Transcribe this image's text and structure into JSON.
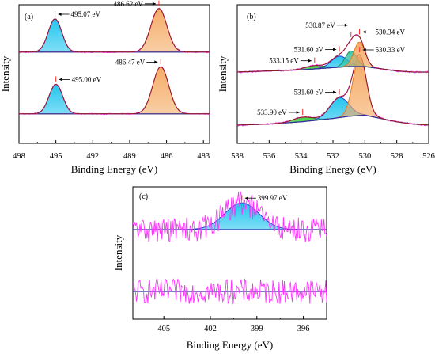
{
  "figure": {
    "caption": "",
    "panels_count": 3
  },
  "colors": {
    "axis": "#000000",
    "fit_envelope": "#8b1a1a",
    "raw_data": "#ff33ff",
    "background_line": "#2f2fa0",
    "peak_blue_fill": "#19c3ee",
    "peak_blue_edge": "#2b3cc9",
    "peak_orange_fill": "#f4a75e",
    "peak_orange_edge": "#e87d1d",
    "peak_teal_fill": "#37c6a8",
    "baseline_green": "#22cc22",
    "marker_red": "#ff2a2a"
  },
  "chart_data": [
    {
      "id": "a",
      "panel_label": "(a)",
      "type": "line",
      "xlabel": "Binding Energy (eV)",
      "ylabel": "Intensity",
      "x_reversed": true,
      "xlim": [
        498,
        482.5
      ],
      "xticks": [
        498,
        495,
        492,
        489,
        486,
        483
      ],
      "y_ticks_shown": false,
      "traces": [
        {
          "offset": 1,
          "background": [
            [
              498,
              0.02
            ],
            [
              482.5,
              0.02
            ]
          ],
          "peaks": [
            {
              "center": 495.0,
              "height": 0.34,
              "width": 0.55,
              "color": "blue"
            },
            {
              "center": 486.47,
              "height": 0.54,
              "width": 0.65,
              "color": "orange"
            }
          ],
          "annotations": [
            {
              "text": "495.00 eV",
              "x": 495.0,
              "side": "right"
            },
            {
              "text": "486.47 eV",
              "x": 486.47,
              "side": "left"
            }
          ]
        },
        {
          "offset": 0,
          "background": [
            [
              498,
              0.02
            ],
            [
              482.5,
              0.02
            ]
          ],
          "peaks": [
            {
              "center": 495.07,
              "height": 0.38,
              "width": 0.55,
              "color": "blue"
            },
            {
              "center": 486.62,
              "height": 0.5,
              "width": 0.65,
              "color": "orange"
            }
          ],
          "annotations": [
            {
              "text": "495.07 eV",
              "x": 495.07,
              "side": "right"
            },
            {
              "text": "486.62 eV",
              "x": 486.62,
              "side": "left"
            }
          ]
        }
      ]
    },
    {
      "id": "b",
      "panel_label": "(b)",
      "type": "line",
      "xlabel": "Binding Energy (eV)",
      "ylabel": "Intensity",
      "x_reversed": true,
      "xlim": [
        538,
        526
      ],
      "xticks": [
        538,
        536,
        534,
        532,
        530,
        528,
        526
      ],
      "y_ticks_shown": false,
      "traces": [
        {
          "offset": 1,
          "background": [
            [
              538,
              0.0
            ],
            [
              536,
              0.01
            ],
            [
              534,
              0.03
            ],
            [
              532,
              0.06
            ],
            [
              531,
              0.08
            ],
            [
              530,
              0.09
            ],
            [
              529,
              0.06
            ],
            [
              528,
              0.03
            ],
            [
              527,
              0.01
            ],
            [
              526,
              0.0
            ]
          ],
          "peaks": [
            {
              "center": 533.9,
              "height": 0.04,
              "width": 0.6,
              "color": "green"
            },
            {
              "center": 531.6,
              "height": 0.18,
              "width": 0.6,
              "color": "blue"
            },
            {
              "center": 530.33,
              "height": 0.53,
              "width": 0.42,
              "color": "orange"
            }
          ],
          "annotations": [
            {
              "text": "533.90 eV",
              "x": 533.9,
              "side": "left"
            },
            {
              "text": "531.60 eV",
              "x": 531.6,
              "side": "left"
            },
            {
              "text": "530.33 eV",
              "x": 530.33,
              "side": "right"
            }
          ]
        },
        {
          "offset": 0,
          "background": [
            [
              538,
              0.0
            ],
            [
              536,
              0.01
            ],
            [
              534,
              0.02
            ],
            [
              532,
              0.04
            ],
            [
              531,
              0.05
            ],
            [
              530,
              0.05
            ],
            [
              529,
              0.03
            ],
            [
              528,
              0.01
            ],
            [
              527,
              0.0
            ],
            [
              526,
              0.0
            ]
          ],
          "peaks": [
            {
              "center": 533.15,
              "height": 0.03,
              "width": 0.6,
              "color": "green"
            },
            {
              "center": 531.6,
              "height": 0.1,
              "width": 0.5,
              "color": "blue"
            },
            {
              "center": 530.87,
              "height": 0.14,
              "width": 0.35,
              "color": "teal"
            },
            {
              "center": 530.34,
              "height": 0.22,
              "width": 0.35,
              "color": "orange"
            }
          ],
          "annotations": [
            {
              "text": "533.15 eV",
              "x": 533.15,
              "side": "left"
            },
            {
              "text": "531.60 eV",
              "x": 531.6,
              "side": "left"
            },
            {
              "text": "530.87 eV",
              "x": 530.87,
              "side": "left"
            },
            {
              "text": "530.34 eV",
              "x": 530.34,
              "side": "right"
            }
          ]
        }
      ]
    },
    {
      "id": "c",
      "panel_label": "(c)",
      "type": "line",
      "xlabel": "Binding Energy (eV)",
      "ylabel": "Intensity",
      "x_reversed": true,
      "xlim": [
        407,
        394.5
      ],
      "xticks": [
        405,
        402,
        399,
        396
      ],
      "y_ticks_shown": false,
      "traces": [
        {
          "offset": 1,
          "background": [
            [
              407,
              0.0
            ],
            [
              394.5,
              0.0
            ]
          ],
          "noise_only": true,
          "peaks": [],
          "annotations": []
        },
        {
          "offset": 0,
          "background": [
            [
              407,
              0.0
            ],
            [
              394.5,
              0.0
            ]
          ],
          "peaks": [
            {
              "center": 399.97,
              "height": 0.26,
              "width": 1.1,
              "color": "blue"
            }
          ],
          "annotations": [
            {
              "text": "399.97 eV",
              "x": 399.97,
              "side": "right"
            }
          ]
        }
      ]
    }
  ]
}
